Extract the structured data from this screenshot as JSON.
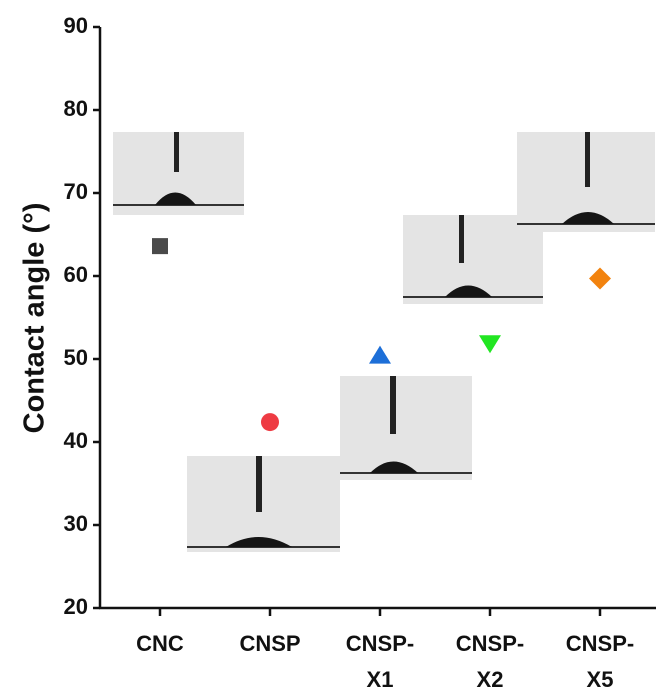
{
  "chart_data": {
    "type": "scatter",
    "y_label": "Contact angle (°)",
    "categories": [
      "CNC",
      "CNSP",
      "CNSP-X1",
      "CNSP-X2",
      "CNSP-X5"
    ],
    "values": [
      63.6,
      42.4,
      50.4,
      51.9,
      59.7
    ],
    "colors": [
      "#4a4a4a",
      "#ee3b43",
      "#1d6fd8",
      "#22e622",
      "#f2830f"
    ],
    "markers": [
      "square",
      "circle",
      "triangle-up",
      "triangle-down",
      "diamond"
    ],
    "ylim": [
      20,
      90
    ],
    "yticks": [
      20,
      30,
      40,
      50,
      60,
      70,
      80,
      90
    ]
  }
}
